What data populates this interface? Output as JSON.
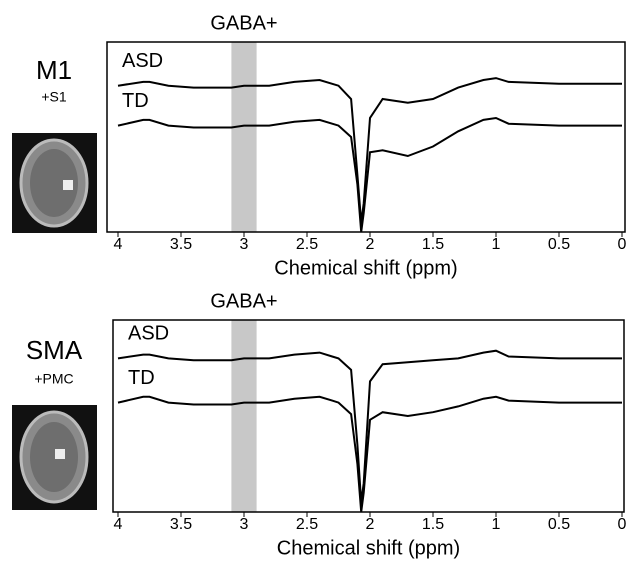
{
  "chart_data": [
    {
      "type": "line",
      "region_label": "M1",
      "region_sublabel": "+S1",
      "annotation": "GABA+",
      "gaba_band": [
        3.1,
        2.9
      ],
      "xlabel": "Chemical shift (ppm)",
      "xlim": [
        4,
        0
      ],
      "xticks": [
        4,
        3.5,
        3,
        2.5,
        2,
        1.5,
        1,
        0.5,
        0
      ],
      "ylim": [
        0,
        10
      ],
      "x": [
        4,
        3.8,
        3.75,
        3.6,
        3.4,
        3.1,
        3.0,
        2.8,
        2.6,
        2.4,
        2.3,
        2.25,
        2.15,
        2.1,
        2.07,
        2.05,
        2.0,
        1.9,
        1.7,
        1.5,
        1.3,
        1.1,
        1.0,
        0.9,
        0.5,
        0
      ],
      "series": [
        {
          "name": "ASD",
          "color": "#000000",
          "values": [
            7.7,
            7.9,
            7.9,
            7.7,
            7.6,
            7.6,
            7.7,
            7.7,
            7.9,
            8.0,
            7.8,
            7.7,
            7.0,
            3.0,
            0.5,
            1.5,
            6.0,
            7.0,
            6.8,
            7.0,
            7.6,
            8.0,
            8.1,
            7.9,
            7.8,
            7.8
          ]
        },
        {
          "name": "TD",
          "color": "#000000",
          "values": [
            5.6,
            5.9,
            5.9,
            5.6,
            5.5,
            5.5,
            5.6,
            5.6,
            5.8,
            5.9,
            5.7,
            5.6,
            5.0,
            2.5,
            0,
            1.0,
            4.2,
            4.3,
            4.0,
            4.5,
            5.3,
            5.9,
            6.0,
            5.7,
            5.6,
            5.6
          ]
        }
      ]
    },
    {
      "type": "line",
      "region_label": "SMA",
      "region_sublabel": "+PMC",
      "annotation": "GABA+",
      "gaba_band": [
        3.1,
        2.9
      ],
      "xlabel": "Chemical shift (ppm)",
      "xlim": [
        4,
        0
      ],
      "xticks": [
        4,
        3.5,
        3,
        2.5,
        2,
        1.5,
        1,
        0.5,
        0
      ],
      "ylim": [
        0,
        10
      ],
      "x": [
        4,
        3.8,
        3.75,
        3.6,
        3.4,
        3.1,
        3.0,
        2.8,
        2.6,
        2.4,
        2.3,
        2.25,
        2.15,
        2.1,
        2.07,
        2.05,
        2.0,
        1.9,
        1.7,
        1.5,
        1.3,
        1.1,
        1.0,
        0.9,
        0.5,
        0
      ],
      "series": [
        {
          "name": "ASD",
          "color": "#000000",
          "values": [
            8.0,
            8.2,
            8.2,
            8.0,
            7.9,
            7.9,
            8.0,
            8.0,
            8.2,
            8.3,
            8.1,
            8.0,
            7.4,
            3.5,
            0.5,
            1.5,
            6.8,
            7.7,
            7.8,
            7.9,
            8.0,
            8.3,
            8.4,
            8.1,
            8.0,
            8.0
          ]
        },
        {
          "name": "TD",
          "color": "#000000",
          "values": [
            5.7,
            6.0,
            6.0,
            5.7,
            5.6,
            5.6,
            5.7,
            5.7,
            5.9,
            6.0,
            5.8,
            5.7,
            5.1,
            2.5,
            0,
            1.0,
            4.8,
            5.2,
            5.0,
            5.2,
            5.5,
            5.9,
            6.0,
            5.8,
            5.7,
            5.7
          ]
        }
      ]
    }
  ]
}
